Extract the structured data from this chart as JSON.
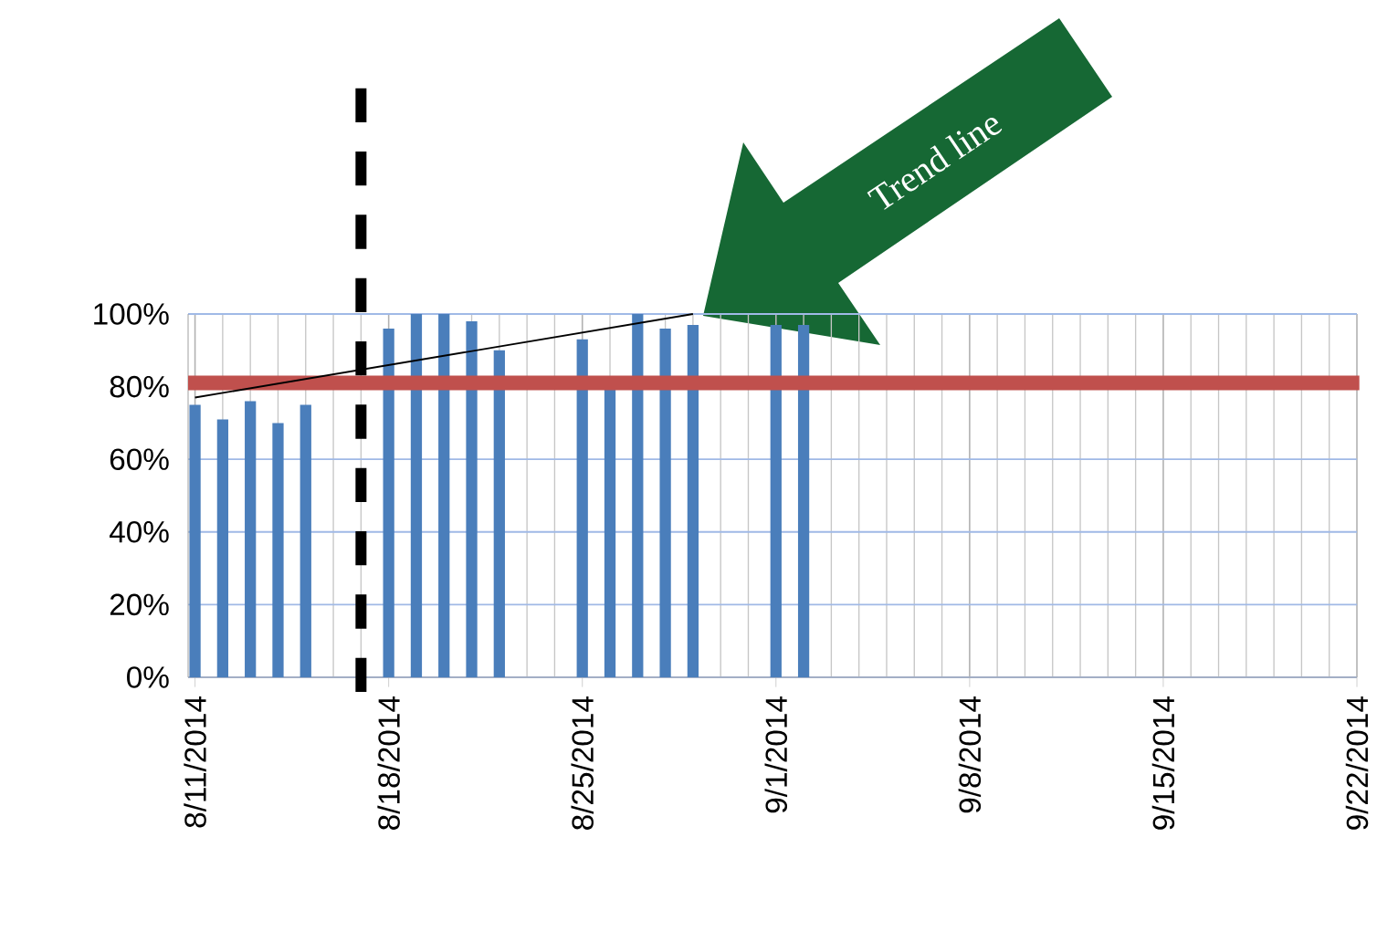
{
  "chart_data": {
    "type": "bar",
    "xlim": [
      "2014-08-10T18:00",
      "2014-09-22"
    ],
    "xticks": [
      {
        "value": "2014-08-11",
        "label": "8/11/2014"
      },
      {
        "value": "2014-08-18",
        "label": "8/18/2014"
      },
      {
        "value": "2014-08-25",
        "label": "8/25/2014"
      },
      {
        "value": "2014-09-01",
        "label": "9/1/2014"
      },
      {
        "value": "2014-09-08",
        "label": "9/8/2014"
      },
      {
        "value": "2014-09-15",
        "label": "9/15/2014"
      },
      {
        "value": "2014-09-22",
        "label": "9/22/2014"
      }
    ],
    "ylim": [
      0,
      100
    ],
    "yticks": [
      {
        "value": 0,
        "label": "0%"
      },
      {
        "value": 20,
        "label": "20%"
      },
      {
        "value": 40,
        "label": "40%"
      },
      {
        "value": 60,
        "label": "60%"
      },
      {
        "value": 80,
        "label": "80%"
      },
      {
        "value": 100,
        "label": "100%"
      }
    ],
    "grid": true,
    "series": [
      {
        "color": "#4a7ebb",
        "x": [
          "2014-08-11",
          "2014-08-12",
          "2014-08-13",
          "2014-08-14",
          "2014-08-15",
          "2014-08-18",
          "2014-08-19",
          "2014-08-20",
          "2014-08-21",
          "2014-08-22",
          "2014-08-25",
          "2014-08-26",
          "2014-08-27",
          "2014-08-28",
          "2014-08-29",
          "2014-09-01",
          "2014-09-02"
        ],
        "values": [
          75,
          71,
          76,
          70,
          75,
          96,
          100,
          100,
          98,
          90,
          93,
          80,
          100,
          96,
          97,
          97,
          97
        ]
      },
      {
        "type": "line",
        "color": "#000000",
        "x": [
          "2014-08-11",
          "2014-08-29"
        ],
        "values": [
          77,
          100
        ]
      }
    ],
    "ref_lines": [
      {
        "axis": "y",
        "value": 81,
        "color": "#c0504d"
      },
      {
        "axis": "x",
        "value": "2014-08-17",
        "color": "#000000",
        "line_style": "dashed"
      }
    ],
    "annotations": [
      "Trend line"
    ]
  }
}
